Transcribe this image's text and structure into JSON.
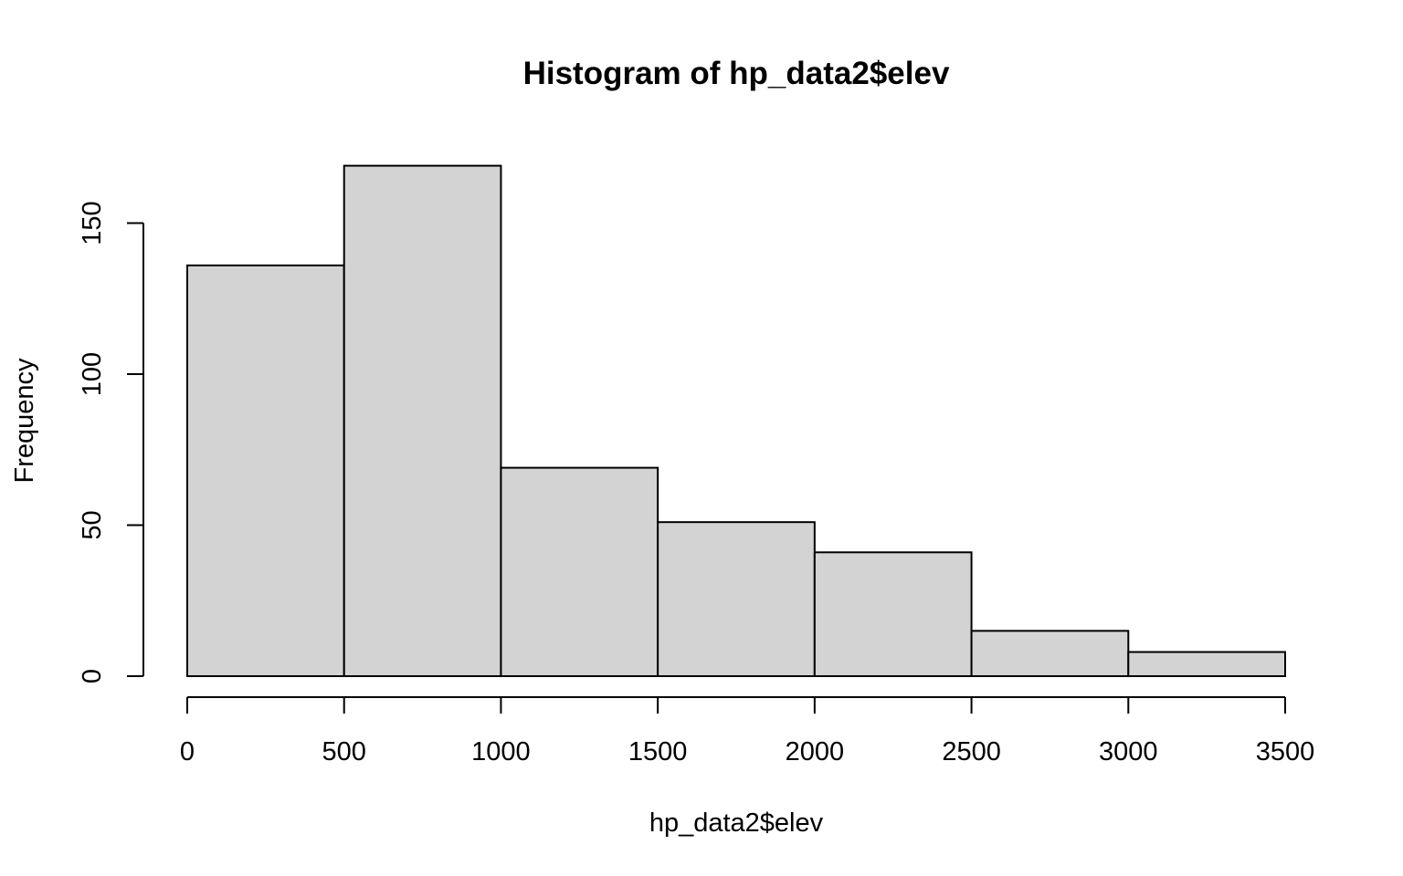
{
  "chart_data": {
    "type": "bar",
    "title": "Histogram of hp_data2$elev",
    "xlabel": "hp_data2$elev",
    "ylabel": "Frequency",
    "bins": [
      {
        "start": 0,
        "end": 500,
        "value": 136
      },
      {
        "start": 500,
        "end": 1000,
        "value": 169
      },
      {
        "start": 1000,
        "end": 1500,
        "value": 69
      },
      {
        "start": 1500,
        "end": 2000,
        "value": 51
      },
      {
        "start": 2000,
        "end": 2500,
        "value": 41
      },
      {
        "start": 2500,
        "end": 3000,
        "value": 15
      },
      {
        "start": 3000,
        "end": 3500,
        "value": 8
      }
    ],
    "xlim": [
      0,
      3500
    ],
    "ylim": [
      0,
      150
    ],
    "x_ticks": [
      "0",
      "500",
      "1000",
      "1500",
      "2000",
      "2500",
      "3000",
      "3500"
    ],
    "y_ticks": [
      "0",
      "50",
      "100",
      "150"
    ],
    "grid": false,
    "legend": "none",
    "colors": {
      "bar_fill": "#d3d3d3",
      "bar_stroke": "#000000"
    }
  }
}
